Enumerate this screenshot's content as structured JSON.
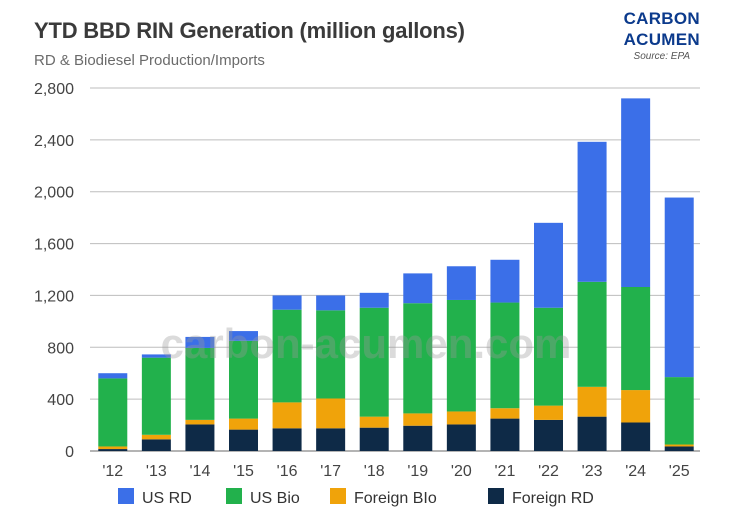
{
  "colors": {
    "us_rd": "#3b6fe8",
    "us_bio": "#22b14c",
    "foreign_bio": "#f0a30a",
    "foreign_rd": "#0e2a47",
    "grid": "#bdbdbd",
    "brand": "#0b3a8c"
  },
  "brand": {
    "line1": "CARBON",
    "line2": "ACUMEN",
    "source": "Source: EPA"
  },
  "watermark": "carbon-acumen.com",
  "chart_data": {
    "type": "bar",
    "stacked": true,
    "title": "YTD BBD RIN Generation (million gallons)",
    "subtitle": "RD & Biodiesel Production/Imports",
    "xlabel": "",
    "ylabel": "",
    "ylim": [
      0,
      2800
    ],
    "yticks": [
      0,
      400,
      800,
      1200,
      1600,
      2000,
      2400,
      2800
    ],
    "ytick_labels": [
      "0",
      "400",
      "800",
      "1,200",
      "1,600",
      "2,000",
      "2,400",
      "2,800"
    ],
    "categories": [
      "'12",
      "'13",
      "'14",
      "'15",
      "'16",
      "'17",
      "'18",
      "'19",
      "'20",
      "'21",
      "'22",
      "'23",
      "'24",
      "'25"
    ],
    "series": [
      {
        "name": "Foreign RD",
        "color_key": "foreign_rd",
        "values": [
          15,
          90,
          205,
          165,
          175,
          175,
          180,
          195,
          205,
          250,
          240,
          265,
          220,
          35
        ]
      },
      {
        "name": "Foreign BIo",
        "color_key": "foreign_bio",
        "values": [
          20,
          35,
          35,
          85,
          200,
          230,
          85,
          95,
          100,
          80,
          110,
          230,
          250,
          15
        ]
      },
      {
        "name": "US Bio",
        "color_key": "us_bio",
        "values": [
          525,
          595,
          555,
          600,
          715,
          680,
          840,
          850,
          860,
          815,
          755,
          810,
          795,
          520
        ]
      },
      {
        "name": "US RD",
        "color_key": "us_rd",
        "values": [
          40,
          25,
          85,
          75,
          110,
          115,
          115,
          230,
          260,
          330,
          655,
          1080,
          1455,
          1385
        ]
      }
    ],
    "legend": {
      "position": "bottom",
      "order": [
        "US RD",
        "US Bio",
        "Foreign BIo",
        "Foreign RD"
      ]
    },
    "grid": true
  }
}
